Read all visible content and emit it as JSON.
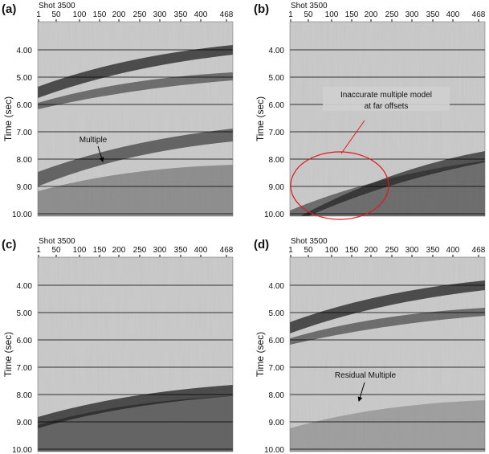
{
  "panels": [
    {
      "label": "(a)",
      "shot": "Shot 3500",
      "xticks": [
        "1",
        "50",
        "100",
        "150",
        "200",
        "250",
        "300",
        "350",
        "400",
        "468"
      ],
      "yticks": [
        "4.00",
        "5.00",
        "6.00",
        "7.00",
        "8.00",
        "9.00",
        "10.00"
      ],
      "y_label": "Time (sec)",
      "annotations": [
        "Multiple"
      ]
    },
    {
      "label": "(b)",
      "shot": "Shot 3500",
      "xticks": [
        "1",
        "50",
        "100",
        "150",
        "200",
        "250",
        "300",
        "350",
        "400",
        "468"
      ],
      "yticks": [
        "4.00",
        "5.00",
        "6.00",
        "7.00",
        "8.00",
        "9.00",
        "10.00"
      ],
      "y_label": "Time (sec)",
      "annotations": [
        "Inaccurate multiple model",
        "at far offsets"
      ]
    },
    {
      "label": "(c)",
      "shot": "Shot 3500",
      "xticks": [
        "1",
        "50",
        "100",
        "150",
        "200",
        "250",
        "300",
        "350",
        "400",
        "468"
      ],
      "yticks": [
        "4.00",
        "5.00",
        "6.00",
        "7.00",
        "8.00",
        "9.00",
        "10.00"
      ],
      "y_label": "Time (sec)",
      "annotations": []
    },
    {
      "label": "(d)",
      "shot": "Shot 3500",
      "xticks": [
        "1",
        "50",
        "100",
        "150",
        "200",
        "250",
        "300",
        "350",
        "400",
        "468"
      ],
      "yticks": [
        "4.00",
        "5.00",
        "6.00",
        "7.00",
        "8.00",
        "9.00",
        "10.00"
      ],
      "y_label": "Time (sec)",
      "annotations": [
        "Residual Multiple"
      ]
    }
  ]
}
